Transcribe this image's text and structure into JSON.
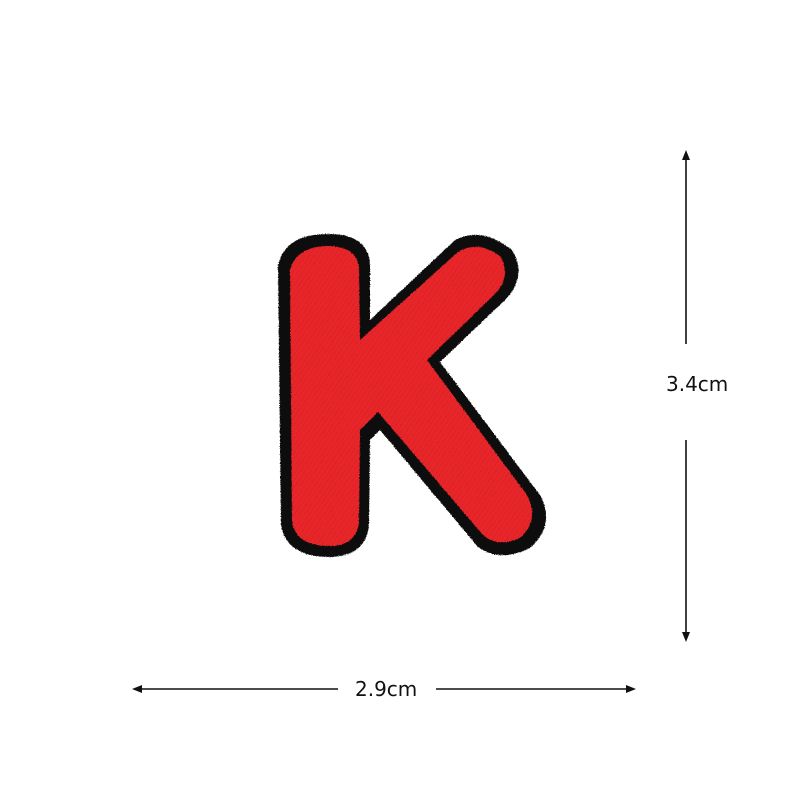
{
  "product": {
    "patch_letter": "K",
    "patch_fill_color": "#e8262b",
    "patch_border_color": "#111111"
  },
  "dimensions": {
    "height_label": "3.4cm",
    "width_label": "2.9cm"
  }
}
